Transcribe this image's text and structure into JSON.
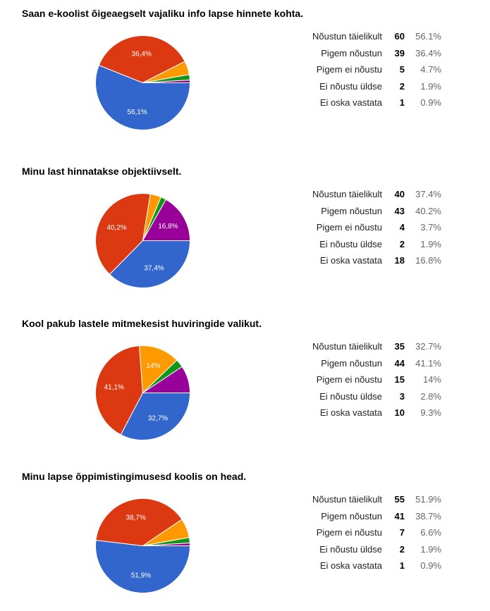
{
  "palette": [
    "#3366cc",
    "#dc3912",
    "#ff9900",
    "#109618",
    "#990099"
  ],
  "chart_data": [
    {
      "type": "pie",
      "title": "Saan e-koolist õigeaegselt vajaliku info lapse hinnete kohta.",
      "categories": [
        "Nõustun täielikult",
        "Pigem nõustun",
        "Pigem ei nõustu",
        "Ei nõustu üldse",
        "Ei oska vastata"
      ],
      "values": [
        60,
        39,
        5,
        2,
        1
      ],
      "percents": [
        "56.1%",
        "36.4%",
        "4.7%",
        "1.9%",
        "0.9%"
      ],
      "slice_labels": [
        "56,1%",
        "36,4%",
        "",
        "",
        ""
      ]
    },
    {
      "type": "pie",
      "title": "Minu last hinnatakse objektiivselt.",
      "categories": [
        "Nõustun täielikult",
        "Pigem nõustun",
        "Pigem ei nõustu",
        "Ei nõustu üldse",
        "Ei oska vastata"
      ],
      "values": [
        40,
        43,
        4,
        2,
        18
      ],
      "percents": [
        "37.4%",
        "40.2%",
        "3.7%",
        "1.9%",
        "16.8%"
      ],
      "slice_labels": [
        "37,4%",
        "40,2%",
        "",
        "",
        "16,8%"
      ]
    },
    {
      "type": "pie",
      "title": "Kool pakub lastele mitmekesist huviringide valikut.",
      "categories": [
        "Nõustun täielikult",
        "Pigem nõustun",
        "Pigem ei nõustu",
        "Ei nõustu üldse",
        "Ei oska vastata"
      ],
      "values": [
        35,
        44,
        15,
        3,
        10
      ],
      "percents": [
        "32.7%",
        "41.1%",
        "14%",
        "2.8%",
        "9.3%"
      ],
      "slice_labels": [
        "32,7%",
        "41,1%",
        "14%",
        "",
        ""
      ]
    },
    {
      "type": "pie",
      "title": "Minu lapse õppimistingimusesd koolis on head.",
      "categories": [
        "Nõustun täielikult",
        "Pigem nõustun",
        "Pigem ei nõustu",
        "Ei nõustu üldse",
        "Ei oska vastata"
      ],
      "values": [
        55,
        41,
        7,
        2,
        1
      ],
      "percents": [
        "51.9%",
        "38.7%",
        "6.6%",
        "1.9%",
        "0.9%"
      ],
      "slice_labels": [
        "51,9%",
        "38,7%",
        "",
        "",
        ""
      ]
    }
  ]
}
